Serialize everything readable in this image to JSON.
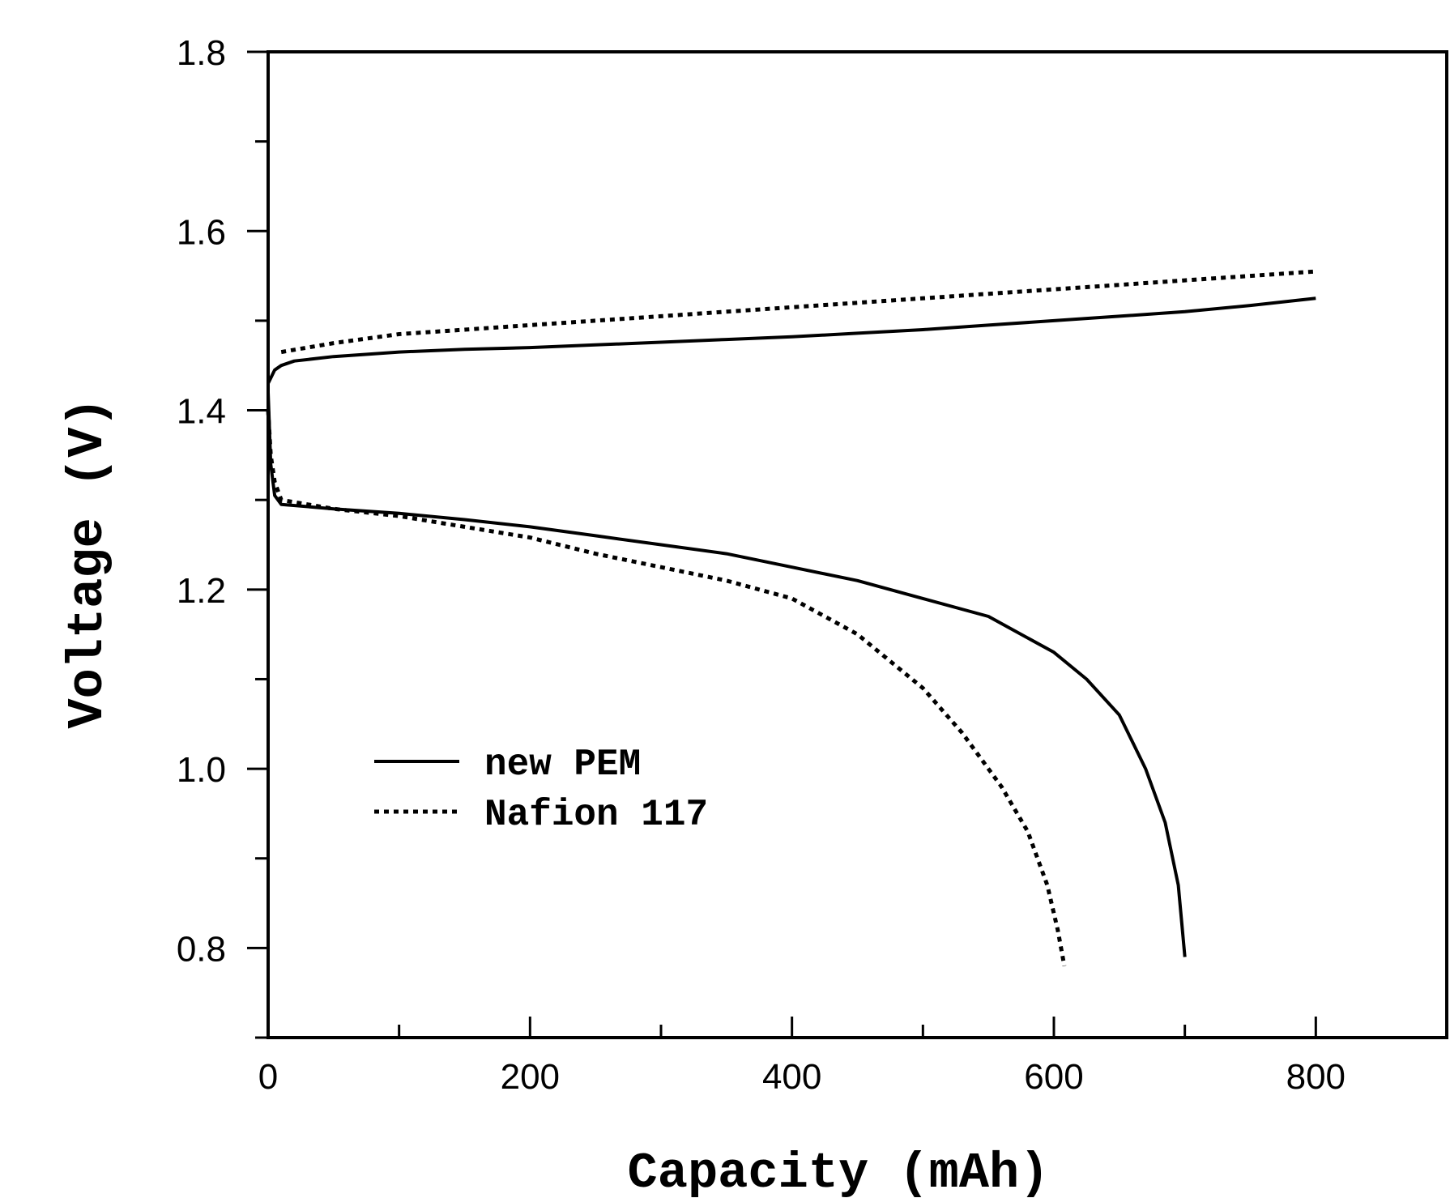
{
  "chart_data": {
    "type": "line",
    "xlabel": "Capacity (mAh)",
    "ylabel": "Voltage (V)",
    "xlim": [
      0,
      900
    ],
    "ylim": [
      0.7,
      1.8
    ],
    "x_ticks": [
      0,
      200,
      400,
      600,
      800
    ],
    "x_tick_labels": [
      "0",
      "200",
      "400",
      "600",
      "800"
    ],
    "y_ticks": [
      0.8,
      1.0,
      1.2,
      1.4,
      1.6,
      1.8
    ],
    "y_tick_labels": [
      "0.8",
      "1.0",
      "1.2",
      "1.4",
      "1.6",
      "1.8"
    ],
    "grid": false,
    "legend_position": "lower-left",
    "series": [
      {
        "name": "new PEM",
        "style": "solid",
        "segments": [
          {
            "phase": "charge",
            "x": [
              0,
              5,
              10,
              20,
              50,
              100,
              150,
              200,
              250,
              300,
              350,
              400,
              450,
              500,
              550,
              600,
              650,
              700,
              750,
              800
            ],
            "y": [
              1.43,
              1.445,
              1.45,
              1.455,
              1.46,
              1.465,
              1.468,
              1.47,
              1.473,
              1.476,
              1.479,
              1.482,
              1.486,
              1.49,
              1.495,
              1.5,
              1.505,
              1.51,
              1.517,
              1.525
            ]
          },
          {
            "phase": "discharge",
            "x": [
              0,
              2,
              5,
              10,
              50,
              100,
              150,
              200,
              250,
              300,
              350,
              400,
              450,
              500,
              550,
              600,
              625,
              650,
              670,
              685,
              695,
              700
            ],
            "y": [
              1.42,
              1.34,
              1.305,
              1.295,
              1.29,
              1.285,
              1.278,
              1.27,
              1.26,
              1.25,
              1.24,
              1.225,
              1.21,
              1.19,
              1.17,
              1.13,
              1.1,
              1.06,
              1.0,
              0.94,
              0.87,
              0.79
            ]
          }
        ]
      },
      {
        "name": "Nafion 117",
        "style": "dotted",
        "segments": [
          {
            "phase": "charge",
            "x": [
              10,
              50,
              100,
              150,
              200,
              250,
              300,
              350,
              400,
              450,
              500,
              550,
              600,
              650,
              700,
              750,
              800
            ],
            "y": [
              1.465,
              1.475,
              1.485,
              1.49,
              1.495,
              1.5,
              1.505,
              1.51,
              1.515,
              1.52,
              1.525,
              1.53,
              1.535,
              1.54,
              1.545,
              1.55,
              1.555
            ]
          },
          {
            "phase": "discharge",
            "x": [
              0,
              2,
              5,
              10,
              50,
              100,
              150,
              200,
              250,
              300,
              350,
              400,
              450,
              500,
              530,
              560,
              580,
              595,
              603,
              608
            ],
            "y": [
              1.4,
              1.35,
              1.32,
              1.3,
              1.29,
              1.282,
              1.27,
              1.258,
              1.24,
              1.225,
              1.21,
              1.19,
              1.15,
              1.09,
              1.04,
              0.98,
              0.93,
              0.87,
              0.82,
              0.78
            ]
          }
        ]
      }
    ]
  }
}
